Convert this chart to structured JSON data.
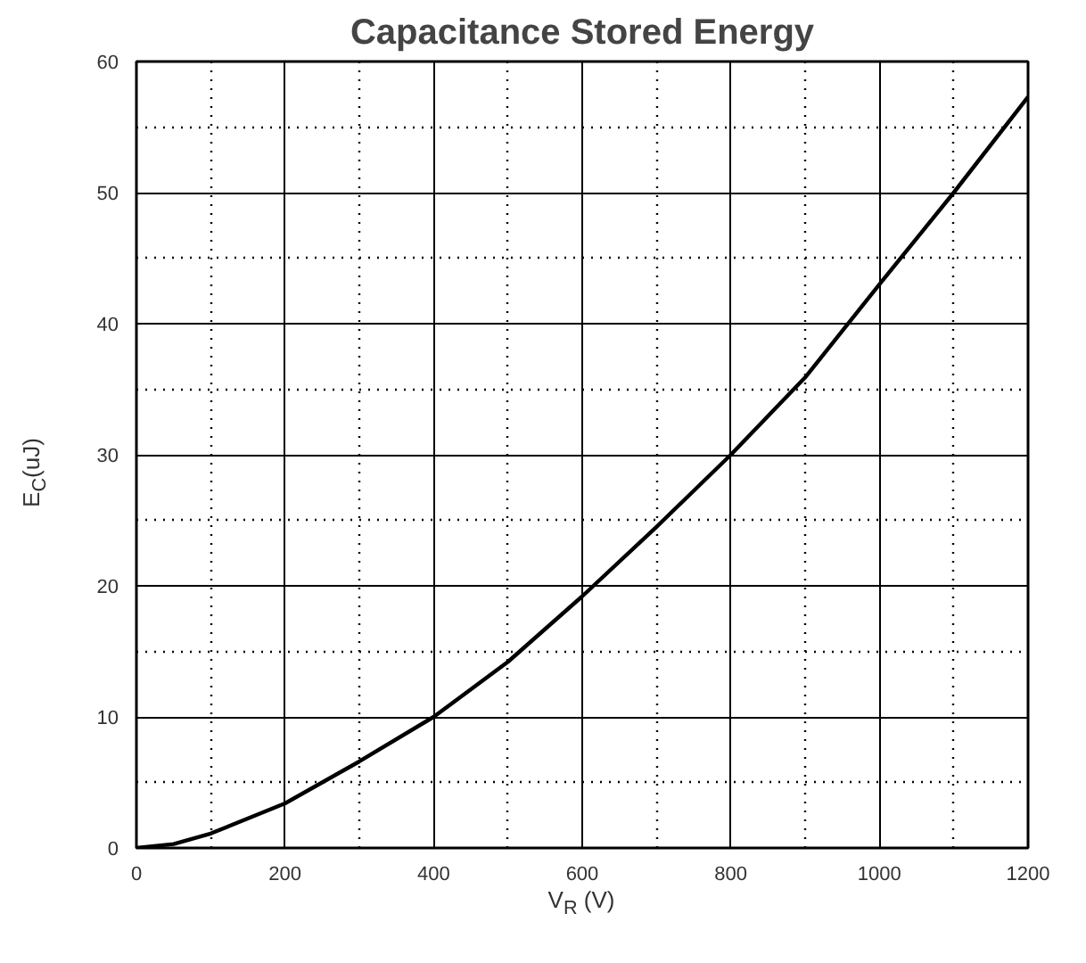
{
  "chart_data": {
    "type": "line",
    "title": "Capacitance Stored Energy",
    "xlabel": "V$_{R}$ (V)",
    "ylabel": "E$_{C}$(uJ)",
    "x": [
      0,
      50,
      100,
      200,
      300,
      400,
      500,
      600,
      700,
      800,
      900,
      1000,
      1100,
      1200
    ],
    "series": [
      {
        "color": "#000000",
        "values": [
          0,
          0.3,
          1.1,
          3.4,
          6.6,
          10,
          14.2,
          19.2,
          24.5,
          30,
          35.9,
          43,
          50,
          57.3
        ]
      }
    ],
    "xlim": [
      0,
      1200
    ],
    "ylim": [
      0,
      60
    ],
    "xticks": [
      0,
      {
        "value": 100,
        "label": null
      },
      200,
      {
        "value": 300,
        "label": null
      },
      400,
      {
        "value": 500,
        "label": null
      },
      600,
      {
        "value": 700,
        "label": null
      },
      800,
      {
        "value": 900,
        "label": null
      },
      1000,
      {
        "value": 1100,
        "label": null
      },
      1200
    ],
    "yticks": [
      0,
      {
        "value": 5,
        "label": null
      },
      10,
      {
        "value": 15,
        "label": null
      },
      20,
      {
        "value": 25,
        "label": null
      },
      30,
      {
        "value": 35,
        "label": null
      },
      40,
      {
        "value": 45,
        "label": null
      },
      50,
      {
        "value": 55,
        "label": null
      },
      60
    ],
    "grid": true,
    "marker": "none",
    "line_style": "solid"
  }
}
